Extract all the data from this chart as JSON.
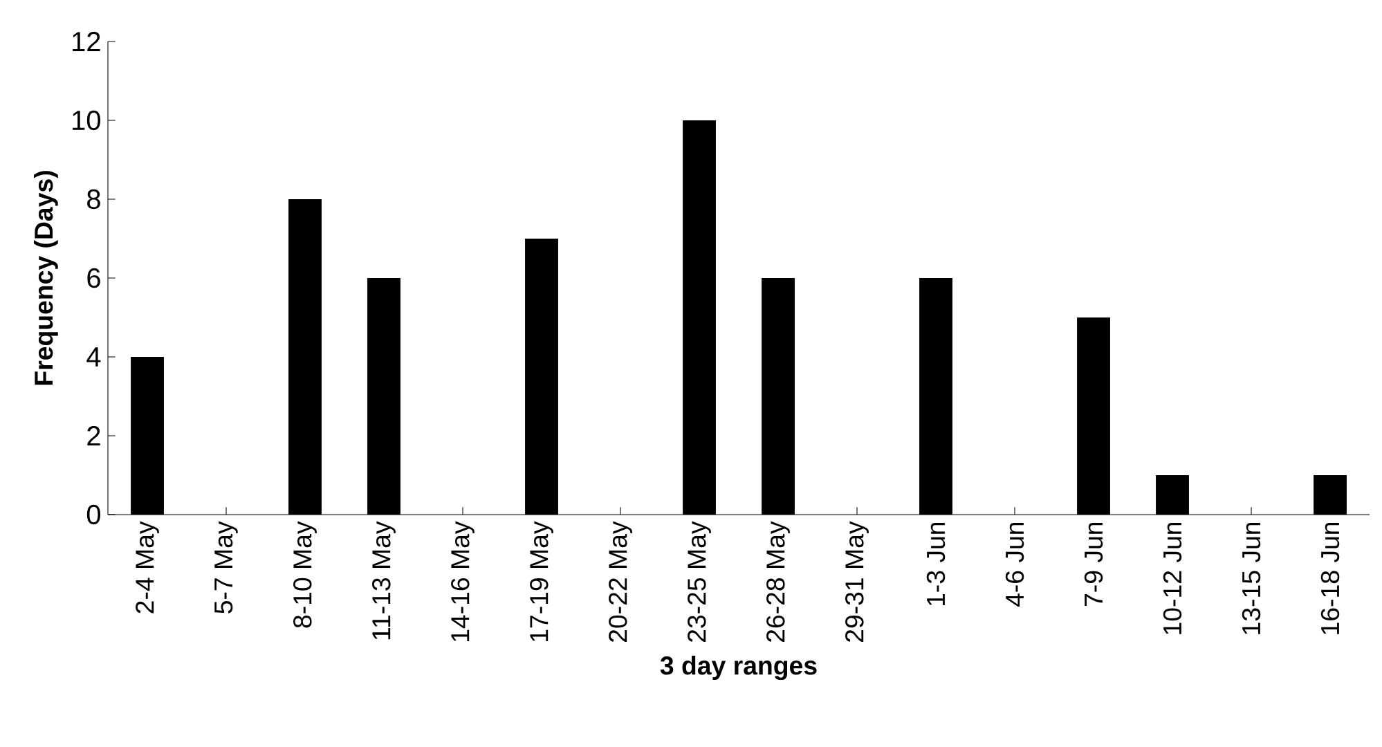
{
  "chart_data": {
    "type": "bar",
    "xlabel": "3 day ranges",
    "ylabel": "Frequency (Days)",
    "categories": [
      "2-4 May",
      "5-7 May",
      "8-10 May",
      "11-13 May",
      "14-16 May",
      "17-19 May",
      "20-22 May",
      "23-25 May",
      "26-28 May",
      "29-31 May",
      "1-3 Jun",
      "4-6 Jun",
      "7-9 Jun",
      "10-12 Jun",
      "13-15 Jun",
      "16-18 Jun"
    ],
    "values": [
      4,
      0,
      8,
      6,
      0,
      7,
      0,
      10,
      6,
      0,
      6,
      0,
      5,
      1,
      0,
      1
    ],
    "color": "#000000",
    "ylim": [
      0,
      12
    ],
    "yticks": [
      0,
      2,
      4,
      6,
      8,
      10,
      12
    ]
  }
}
